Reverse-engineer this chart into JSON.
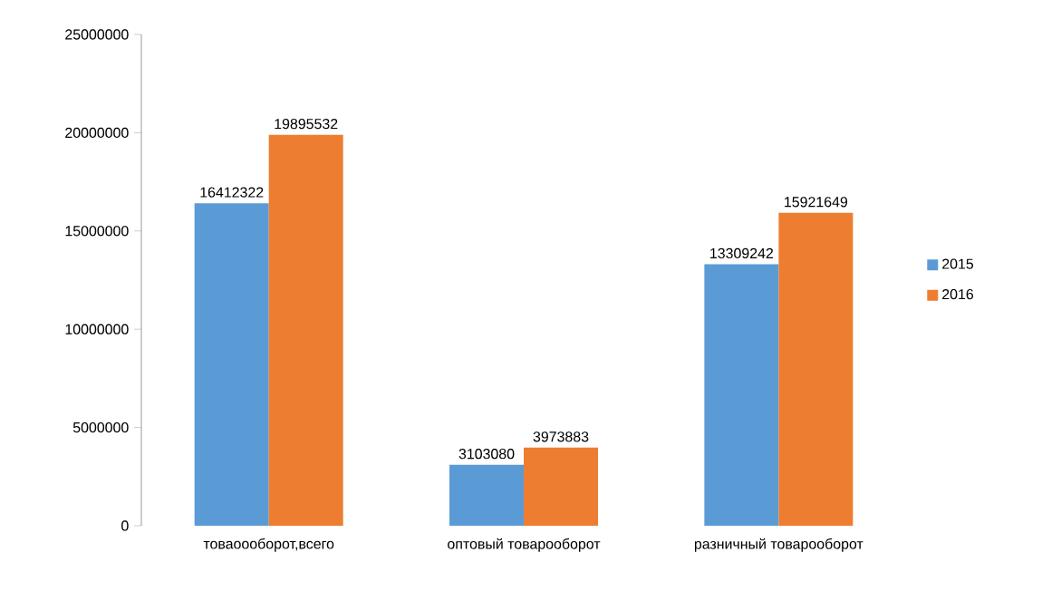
{
  "chart_data": {
    "type": "bar",
    "categories": [
      "товаоооборот,всего",
      "оптовый товарооборот",
      "разничный товарооборот"
    ],
    "series": [
      {
        "name": "2015",
        "color": "#5b9bd5",
        "values": [
          16412322,
          3103080,
          13309242
        ]
      },
      {
        "name": "2016",
        "color": "#ed7d31",
        "values": [
          19895532,
          3973883,
          15921649
        ]
      }
    ],
    "ylim": [
      0,
      25000000
    ],
    "yticks": [
      0,
      5000000,
      10000000,
      15000000,
      20000000,
      25000000
    ],
    "data_labels": true,
    "legend": "right",
    "grid": false
  }
}
